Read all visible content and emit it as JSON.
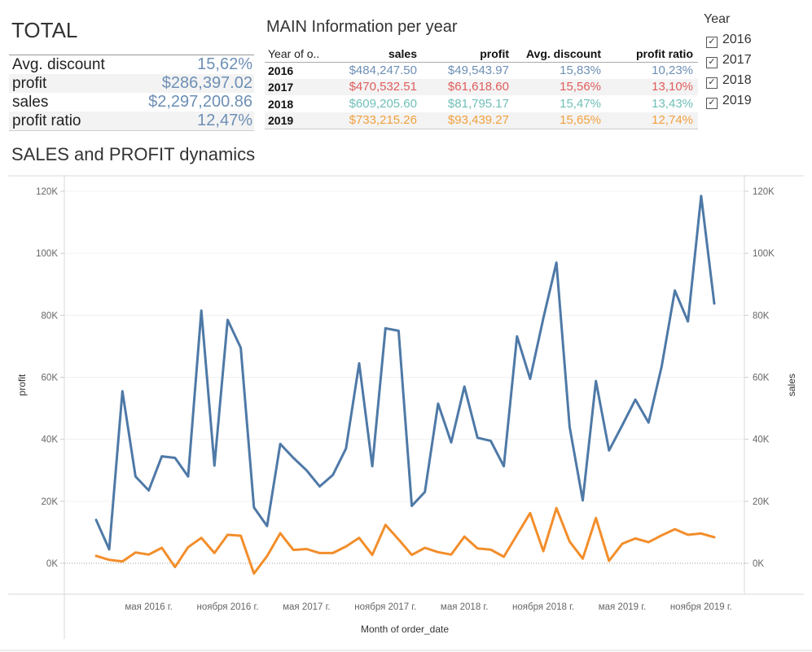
{
  "totals": {
    "title": "TOTAL",
    "rows": [
      {
        "label": "Avg. discount",
        "value": "15,62%"
      },
      {
        "label": "profit",
        "value": "$286,397.02"
      },
      {
        "label": "sales",
        "value": "$2,297,200.86"
      },
      {
        "label": "profit ratio",
        "value": "12,47%"
      }
    ]
  },
  "main_info": {
    "title": "MAIN Information per year",
    "headers": {
      "year": "Year of o..",
      "sales": "sales",
      "profit": "profit",
      "discount": "Avg. discount",
      "ratio": "profit ratio"
    },
    "rows": [
      {
        "year": "2016",
        "sales": "$484,247.50",
        "profit": "$49,543.97",
        "discount": "15,83%",
        "ratio": "10,23%",
        "color": "#6d8fb5"
      },
      {
        "year": "2017",
        "sales": "$470,532.51",
        "profit": "$61,618.60",
        "discount": "15,56%",
        "ratio": "13,10%",
        "color": "#e05c5c"
      },
      {
        "year": "2018",
        "sales": "$609,205.60",
        "profit": "$81,795.17",
        "discount": "15,47%",
        "ratio": "13,43%",
        "color": "#6fbfb7"
      },
      {
        "year": "2019",
        "sales": "$733,215.26",
        "profit": "$93,439.27",
        "discount": "15,65%",
        "ratio": "12,74%",
        "color": "#f2a03d"
      }
    ]
  },
  "year_filter": {
    "title": "Year",
    "items": [
      {
        "label": "2016",
        "checked": true
      },
      {
        "label": "2017",
        "checked": true
      },
      {
        "label": "2018",
        "checked": true
      },
      {
        "label": "2019",
        "checked": true
      }
    ]
  },
  "chart_title": "SALES and PROFIT dynamics",
  "chart_data": {
    "type": "line",
    "xlabel": "Month of order_date",
    "ylabel_left": "profit",
    "ylabel_right": "sales",
    "ylim": [
      0,
      120000
    ],
    "y_ticks": [
      "0K",
      "20K",
      "40K",
      "60K",
      "80K",
      "100K",
      "120K"
    ],
    "x_ticks": [
      "мая 2016 г.",
      "ноября 2016 г.",
      "мая 2017 г.",
      "ноября 2017 г.",
      "мая 2018 г.",
      "ноября 2018 г.",
      "мая 2019 г.",
      "ноября 2019 г."
    ],
    "x_tick_month_index": [
      4,
      10,
      16,
      22,
      28,
      34,
      40,
      46
    ],
    "series": [
      {
        "color": "#4e79a7",
        "values": [
          14000,
          4500,
          55500,
          28000,
          23500,
          34500,
          34000,
          28000,
          81500,
          31500,
          78500,
          69500,
          18000,
          12000,
          38500,
          34000,
          30000,
          24800,
          28500,
          37000,
          64500,
          31300,
          75800,
          75000,
          18500,
          23000,
          51500,
          39000,
          57000,
          40500,
          39500,
          31300,
          73200,
          59500,
          79000,
          97000,
          44000,
          20300,
          58800,
          36400,
          44500,
          52800,
          45400,
          63500,
          88000,
          78000,
          118500,
          83800
        ]
      },
      {
        "color": "#f28e2b",
        "values": [
          2400,
          1100,
          600,
          3500,
          2800,
          5000,
          -1200,
          5200,
          8200,
          3300,
          9200,
          8900,
          -3300,
          2300,
          9700,
          4300,
          4600,
          3300,
          3300,
          5400,
          8200,
          2700,
          12400,
          7700,
          2700,
          5000,
          3600,
          2800,
          8600,
          4800,
          4400,
          2100,
          9200,
          16200,
          3900,
          17800,
          7000,
          1500,
          14600,
          800,
          6300,
          8000,
          6800,
          9000,
          11000,
          9200,
          9600,
          8400
        ]
      }
    ]
  }
}
